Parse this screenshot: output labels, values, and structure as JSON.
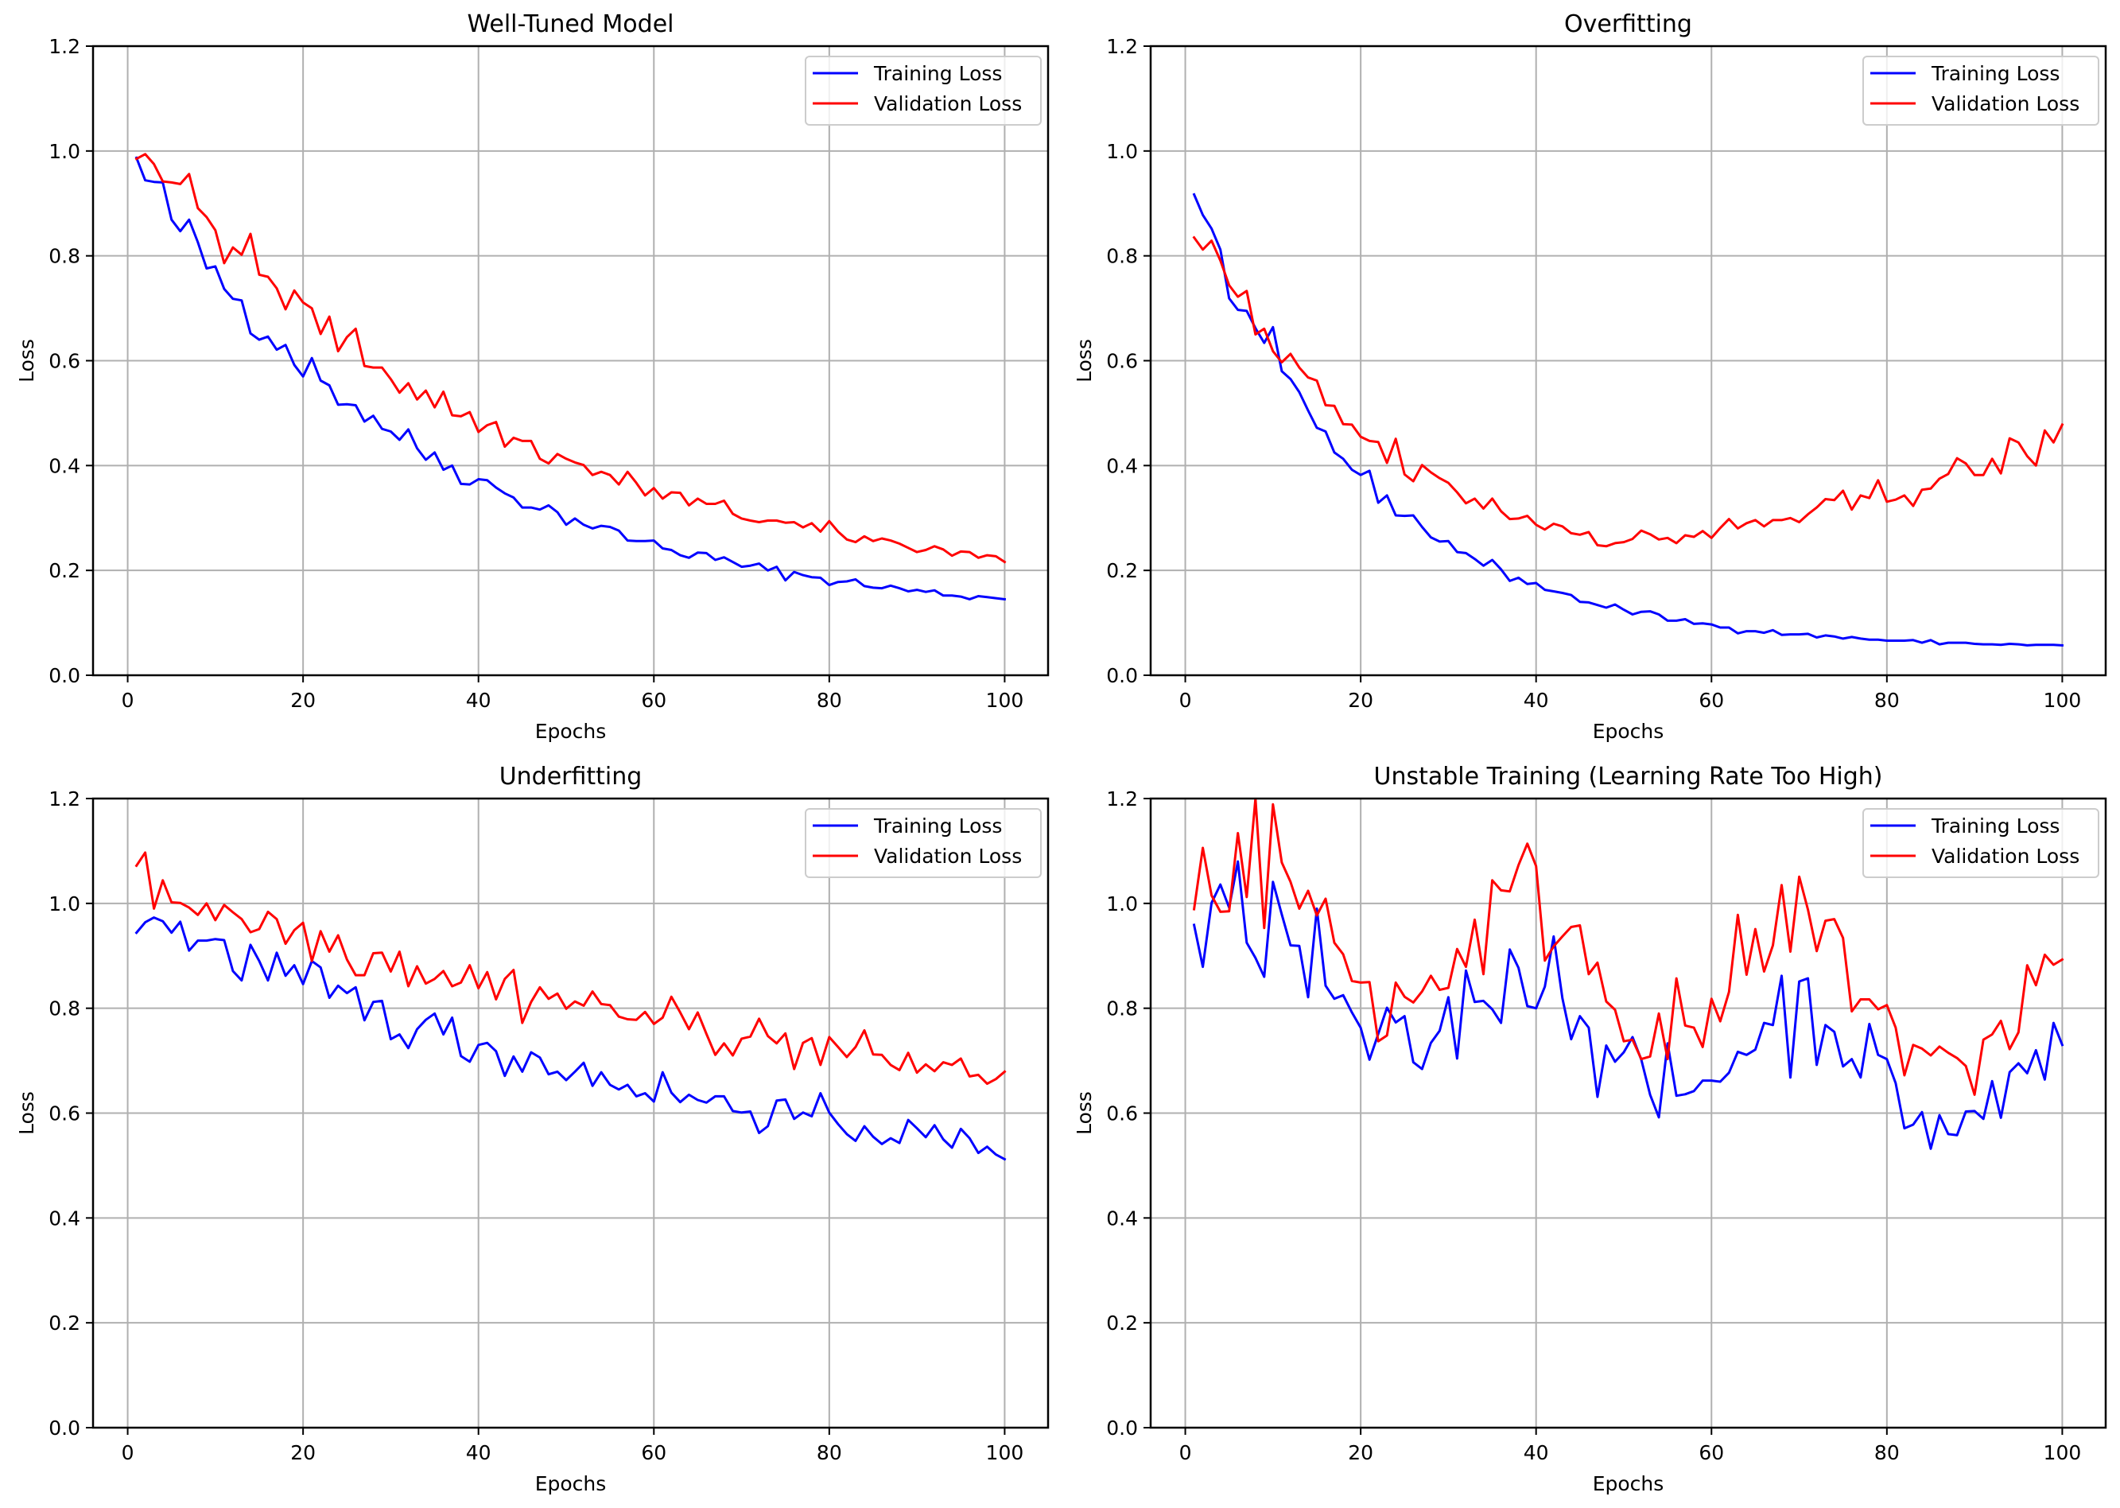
{
  "figure": {
    "legend_labels": [
      "Training Loss",
      "Validation Loss"
    ],
    "series_colors": {
      "Training Loss": "#0000ff",
      "Validation Loss": "#ff0000"
    },
    "grid_color": "#b0b0b0"
  },
  "chart_data": [
    {
      "type": "line",
      "title": "Well-Tuned Model",
      "xlabel": "Epochs",
      "ylabel": "Loss",
      "xlim": [
        -3.95,
        104.95
      ],
      "ylim": [
        0,
        1.2
      ],
      "xticks": [
        0,
        20,
        40,
        60,
        80,
        100
      ],
      "xtick_labels": [
        "0",
        "20",
        "40",
        "60",
        "80",
        "100"
      ],
      "yticks": [
        0.0,
        0.2,
        0.4,
        0.6,
        0.8,
        1.0,
        1.2
      ],
      "ytick_labels": [
        "0.0",
        "0.2",
        "0.4",
        "0.6",
        "0.8",
        "1.0",
        "1.2"
      ],
      "grid": true,
      "legend_position": "upper right",
      "x_start": 1,
      "series": [
        {
          "name": "Training Loss",
          "color": "#0000ff",
          "values": [
            0.987,
            0.944,
            0.941,
            0.94,
            0.869,
            0.847,
            0.869,
            0.826,
            0.776,
            0.78,
            0.737,
            0.718,
            0.715,
            0.652,
            0.64,
            0.646,
            0.621,
            0.63,
            0.592,
            0.57,
            0.605,
            0.562,
            0.553,
            0.516,
            0.517,
            0.515,
            0.484,
            0.495,
            0.47,
            0.465,
            0.449,
            0.469,
            0.433,
            0.411,
            0.425,
            0.392,
            0.4,
            0.365,
            0.364,
            0.374,
            0.372,
            0.358,
            0.347,
            0.339,
            0.32,
            0.32,
            0.316,
            0.324,
            0.311,
            0.287,
            0.299,
            0.287,
            0.28,
            0.285,
            0.283,
            0.276,
            0.257,
            0.256,
            0.256,
            0.257,
            0.242,
            0.239,
            0.229,
            0.224,
            0.234,
            0.233,
            0.22,
            0.225,
            0.216,
            0.207,
            0.209,
            0.213,
            0.2,
            0.207,
            0.181,
            0.197,
            0.191,
            0.187,
            0.186,
            0.172,
            0.178,
            0.179,
            0.183,
            0.17,
            0.167,
            0.166,
            0.171,
            0.166,
            0.16,
            0.163,
            0.159,
            0.162,
            0.152,
            0.152,
            0.15,
            0.145,
            0.151,
            0.149,
            0.147,
            0.145
          ]
        },
        {
          "name": "Validation Loss",
          "color": "#ff0000",
          "values": [
            0.985,
            0.994,
            0.975,
            0.942,
            0.94,
            0.937,
            0.956,
            0.891,
            0.874,
            0.849,
            0.786,
            0.816,
            0.802,
            0.842,
            0.764,
            0.76,
            0.738,
            0.698,
            0.734,
            0.711,
            0.7,
            0.651,
            0.684,
            0.618,
            0.645,
            0.661,
            0.59,
            0.587,
            0.587,
            0.565,
            0.539,
            0.557,
            0.526,
            0.543,
            0.511,
            0.541,
            0.496,
            0.494,
            0.502,
            0.464,
            0.477,
            0.483,
            0.436,
            0.453,
            0.447,
            0.447,
            0.413,
            0.404,
            0.422,
            0.413,
            0.406,
            0.401,
            0.382,
            0.388,
            0.382,
            0.364,
            0.388,
            0.367,
            0.343,
            0.357,
            0.337,
            0.349,
            0.348,
            0.324,
            0.337,
            0.327,
            0.327,
            0.333,
            0.308,
            0.299,
            0.295,
            0.292,
            0.295,
            0.295,
            0.291,
            0.292,
            0.282,
            0.29,
            0.274,
            0.294,
            0.274,
            0.259,
            0.254,
            0.265,
            0.256,
            0.261,
            0.257,
            0.251,
            0.243,
            0.235,
            0.239,
            0.246,
            0.24,
            0.228,
            0.236,
            0.235,
            0.224,
            0.229,
            0.227,
            0.216
          ]
        }
      ]
    },
    {
      "type": "line",
      "title": "Overfitting",
      "xlabel": "Epochs",
      "ylabel": "Loss",
      "xlim": [
        -3.95,
        104.95
      ],
      "ylim": [
        0,
        1.2
      ],
      "xticks": [
        0,
        20,
        40,
        60,
        80,
        100
      ],
      "xtick_labels": [
        "0",
        "20",
        "40",
        "60",
        "80",
        "100"
      ],
      "yticks": [
        0.0,
        0.2,
        0.4,
        0.6,
        0.8,
        1.0,
        1.2
      ],
      "ytick_labels": [
        "0.0",
        "0.2",
        "0.4",
        "0.6",
        "0.8",
        "1.0",
        "1.2"
      ],
      "grid": true,
      "legend_position": "upper right",
      "x_start": 1,
      "series": [
        {
          "name": "Training Loss",
          "color": "#0000ff",
          "values": [
            0.917,
            0.878,
            0.852,
            0.812,
            0.719,
            0.697,
            0.695,
            0.662,
            0.634,
            0.664,
            0.58,
            0.565,
            0.54,
            0.505,
            0.472,
            0.465,
            0.425,
            0.413,
            0.392,
            0.382,
            0.39,
            0.329,
            0.343,
            0.305,
            0.304,
            0.305,
            0.283,
            0.263,
            0.255,
            0.256,
            0.235,
            0.233,
            0.222,
            0.209,
            0.22,
            0.202,
            0.18,
            0.186,
            0.174,
            0.176,
            0.163,
            0.16,
            0.157,
            0.153,
            0.14,
            0.139,
            0.134,
            0.129,
            0.135,
            0.125,
            0.116,
            0.121,
            0.122,
            0.116,
            0.104,
            0.104,
            0.107,
            0.098,
            0.099,
            0.097,
            0.091,
            0.091,
            0.08,
            0.084,
            0.084,
            0.081,
            0.086,
            0.077,
            0.078,
            0.078,
            0.079,
            0.072,
            0.076,
            0.074,
            0.07,
            0.073,
            0.07,
            0.068,
            0.068,
            0.066,
            0.066,
            0.066,
            0.067,
            0.062,
            0.067,
            0.059,
            0.062,
            0.062,
            0.062,
            0.06,
            0.059,
            0.059,
            0.058,
            0.06,
            0.059,
            0.057,
            0.058,
            0.058,
            0.058,
            0.057
          ]
        },
        {
          "name": "Validation Loss",
          "color": "#ff0000",
          "values": [
            0.835,
            0.812,
            0.829,
            0.791,
            0.744,
            0.722,
            0.733,
            0.65,
            0.661,
            0.618,
            0.597,
            0.613,
            0.587,
            0.568,
            0.562,
            0.515,
            0.514,
            0.479,
            0.478,
            0.455,
            0.447,
            0.445,
            0.405,
            0.451,
            0.383,
            0.37,
            0.401,
            0.387,
            0.376,
            0.367,
            0.349,
            0.328,
            0.337,
            0.318,
            0.337,
            0.313,
            0.298,
            0.299,
            0.304,
            0.287,
            0.278,
            0.289,
            0.284,
            0.271,
            0.268,
            0.273,
            0.248,
            0.246,
            0.252,
            0.254,
            0.26,
            0.276,
            0.269,
            0.259,
            0.262,
            0.252,
            0.267,
            0.264,
            0.275,
            0.262,
            0.281,
            0.298,
            0.28,
            0.29,
            0.296,
            0.284,
            0.296,
            0.296,
            0.3,
            0.292,
            0.307,
            0.32,
            0.336,
            0.334,
            0.352,
            0.316,
            0.343,
            0.338,
            0.372,
            0.331,
            0.335,
            0.343,
            0.323,
            0.354,
            0.356,
            0.375,
            0.384,
            0.414,
            0.404,
            0.382,
            0.382,
            0.413,
            0.385,
            0.452,
            0.444,
            0.418,
            0.4,
            0.467,
            0.444,
            0.478
          ]
        }
      ]
    },
    {
      "type": "line",
      "title": "Underfitting",
      "xlabel": "Epochs",
      "ylabel": "Loss",
      "xlim": [
        -3.95,
        104.95
      ],
      "ylim": [
        0,
        1.2
      ],
      "xticks": [
        0,
        20,
        40,
        60,
        80,
        100
      ],
      "xtick_labels": [
        "0",
        "20",
        "40",
        "60",
        "80",
        "100"
      ],
      "yticks": [
        0.0,
        0.2,
        0.4,
        0.6,
        0.8,
        1.0,
        1.2
      ],
      "ytick_labels": [
        "0.0",
        "0.2",
        "0.4",
        "0.6",
        "0.8",
        "1.0",
        "1.2"
      ],
      "grid": true,
      "legend_position": "upper right",
      "x_start": 1,
      "series": [
        {
          "name": "Training Loss",
          "color": "#0000ff",
          "values": [
            0.944,
            0.964,
            0.973,
            0.966,
            0.944,
            0.965,
            0.91,
            0.929,
            0.929,
            0.932,
            0.93,
            0.871,
            0.853,
            0.921,
            0.89,
            0.853,
            0.906,
            0.862,
            0.882,
            0.846,
            0.89,
            0.878,
            0.82,
            0.843,
            0.829,
            0.84,
            0.777,
            0.812,
            0.814,
            0.741,
            0.75,
            0.724,
            0.76,
            0.778,
            0.79,
            0.75,
            0.782,
            0.709,
            0.698,
            0.73,
            0.734,
            0.718,
            0.671,
            0.708,
            0.679,
            0.716,
            0.706,
            0.674,
            0.679,
            0.663,
            0.679,
            0.696,
            0.652,
            0.678,
            0.654,
            0.645,
            0.654,
            0.632,
            0.638,
            0.622,
            0.678,
            0.639,
            0.621,
            0.635,
            0.625,
            0.62,
            0.632,
            0.632,
            0.604,
            0.601,
            0.603,
            0.562,
            0.575,
            0.624,
            0.626,
            0.589,
            0.601,
            0.594,
            0.638,
            0.601,
            0.579,
            0.56,
            0.547,
            0.575,
            0.555,
            0.541,
            0.552,
            0.543,
            0.587,
            0.571,
            0.554,
            0.577,
            0.55,
            0.534,
            0.57,
            0.552,
            0.524,
            0.536,
            0.521,
            0.512
          ]
        },
        {
          "name": "Validation Loss",
          "color": "#ff0000",
          "values": [
            1.072,
            1.097,
            0.99,
            1.044,
            1.002,
            1.001,
            0.992,
            0.978,
            1.0,
            0.968,
            0.997,
            0.983,
            0.97,
            0.945,
            0.951,
            0.984,
            0.97,
            0.923,
            0.949,
            0.963,
            0.89,
            0.947,
            0.908,
            0.939,
            0.893,
            0.863,
            0.863,
            0.905,
            0.906,
            0.87,
            0.908,
            0.842,
            0.88,
            0.847,
            0.856,
            0.871,
            0.842,
            0.849,
            0.882,
            0.838,
            0.869,
            0.817,
            0.856,
            0.873,
            0.772,
            0.812,
            0.84,
            0.818,
            0.828,
            0.799,
            0.813,
            0.805,
            0.832,
            0.808,
            0.806,
            0.784,
            0.779,
            0.778,
            0.793,
            0.77,
            0.782,
            0.822,
            0.792,
            0.76,
            0.792,
            0.751,
            0.711,
            0.733,
            0.71,
            0.742,
            0.746,
            0.78,
            0.747,
            0.733,
            0.752,
            0.684,
            0.734,
            0.743,
            0.692,
            0.745,
            0.726,
            0.707,
            0.726,
            0.758,
            0.712,
            0.711,
            0.692,
            0.682,
            0.715,
            0.677,
            0.693,
            0.68,
            0.697,
            0.692,
            0.704,
            0.67,
            0.673,
            0.656,
            0.665,
            0.679
          ]
        }
      ]
    },
    {
      "type": "line",
      "title": "Unstable Training (Learning Rate Too High)",
      "xlabel": "Epochs",
      "ylabel": "Loss",
      "xlim": [
        -3.95,
        104.95
      ],
      "ylim": [
        0,
        1.2
      ],
      "xticks": [
        0,
        20,
        40,
        60,
        80,
        100
      ],
      "xtick_labels": [
        "0",
        "20",
        "40",
        "60",
        "80",
        "100"
      ],
      "yticks": [
        0.0,
        0.2,
        0.4,
        0.6,
        0.8,
        1.0,
        1.2
      ],
      "ytick_labels": [
        "0.0",
        "0.2",
        "0.4",
        "0.6",
        "0.8",
        "1.0",
        "1.2"
      ],
      "grid": true,
      "legend_position": "upper right",
      "x_start": 1,
      "series": [
        {
          "name": "Training Loss",
          "color": "#0000ff",
          "values": [
            0.959,
            0.879,
            1.001,
            1.036,
            0.992,
            1.08,
            0.925,
            0.896,
            0.86,
            1.041,
            0.979,
            0.92,
            0.919,
            0.821,
            0.99,
            0.843,
            0.818,
            0.825,
            0.792,
            0.763,
            0.702,
            0.751,
            0.801,
            0.773,
            0.785,
            0.697,
            0.684,
            0.734,
            0.757,
            0.821,
            0.704,
            0.872,
            0.812,
            0.814,
            0.798,
            0.772,
            0.912,
            0.877,
            0.804,
            0.8,
            0.841,
            0.937,
            0.819,
            0.741,
            0.785,
            0.763,
            0.631,
            0.729,
            0.698,
            0.716,
            0.745,
            0.702,
            0.635,
            0.592,
            0.733,
            0.633,
            0.636,
            0.642,
            0.662,
            0.662,
            0.66,
            0.677,
            0.717,
            0.711,
            0.721,
            0.772,
            0.768,
            0.862,
            0.668,
            0.851,
            0.857,
            0.692,
            0.768,
            0.755,
            0.689,
            0.703,
            0.668,
            0.77,
            0.711,
            0.703,
            0.657,
            0.571,
            0.578,
            0.602,
            0.532,
            0.596,
            0.56,
            0.558,
            0.603,
            0.604,
            0.589,
            0.661,
            0.591,
            0.678,
            0.695,
            0.676,
            0.72,
            0.664,
            0.772,
            0.73
          ]
        },
        {
          "name": "Validation Loss",
          "color": "#ff0000",
          "values": [
            0.989,
            1.106,
            1.015,
            0.984,
            0.985,
            1.134,
            1.012,
            1.2,
            0.953,
            1.189,
            1.078,
            1.041,
            0.99,
            1.024,
            0.977,
            1.009,
            0.925,
            0.903,
            0.852,
            0.849,
            0.85,
            0.737,
            0.748,
            0.849,
            0.822,
            0.811,
            0.832,
            0.862,
            0.835,
            0.839,
            0.913,
            0.879,
            0.969,
            0.865,
            1.044,
            1.025,
            1.023,
            1.073,
            1.114,
            1.071,
            0.891,
            0.918,
            0.937,
            0.955,
            0.958,
            0.865,
            0.887,
            0.813,
            0.797,
            0.737,
            0.74,
            0.703,
            0.708,
            0.79,
            0.703,
            0.857,
            0.767,
            0.763,
            0.726,
            0.818,
            0.775,
            0.831,
            0.978,
            0.864,
            0.951,
            0.87,
            0.92,
            1.035,
            0.908,
            1.051,
            0.988,
            0.909,
            0.967,
            0.97,
            0.934,
            0.794,
            0.817,
            0.817,
            0.798,
            0.806,
            0.763,
            0.672,
            0.73,
            0.723,
            0.71,
            0.727,
            0.715,
            0.705,
            0.69,
            0.635,
            0.74,
            0.75,
            0.776,
            0.722,
            0.754,
            0.882,
            0.844,
            0.902,
            0.883,
            0.893
          ]
        }
      ]
    }
  ]
}
